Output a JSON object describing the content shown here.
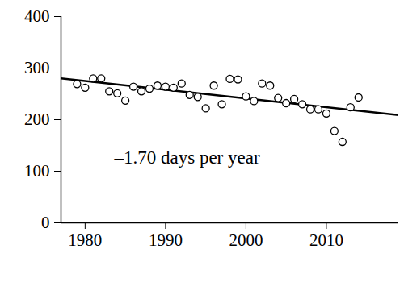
{
  "chart_data": {
    "type": "scatter",
    "annotation": "–1.70 days per year",
    "x": [
      1979,
      1980,
      1981,
      1982,
      1983,
      1984,
      1985,
      1986,
      1987,
      1988,
      1989,
      1990,
      1991,
      1992,
      1993,
      1994,
      1995,
      1996,
      1997,
      1998,
      1999,
      2000,
      2001,
      2002,
      2003,
      2004,
      2005,
      2006,
      2007,
      2008,
      2009,
      2010,
      2011,
      2012,
      2013,
      2014
    ],
    "values": [
      269,
      262,
      280,
      280,
      255,
      251,
      237,
      264,
      255,
      260,
      266,
      264,
      262,
      270,
      248,
      244,
      222,
      266,
      230,
      279,
      278,
      245,
      236,
      270,
      266,
      242,
      232,
      240,
      230,
      220,
      220,
      212,
      178,
      157,
      224,
      243
    ],
    "trend_line": {
      "x": [
        1977,
        2019
      ],
      "values": [
        280,
        209
      ]
    },
    "color": "#000000",
    "marker": "open_circle",
    "xlim": [
      1977,
      2019
    ],
    "xticks": [
      1980,
      1990,
      2000,
      2010
    ],
    "ylim": [
      0,
      400
    ],
    "yticks": [
      0,
      100,
      200,
      300,
      400
    ],
    "grid": false
  }
}
